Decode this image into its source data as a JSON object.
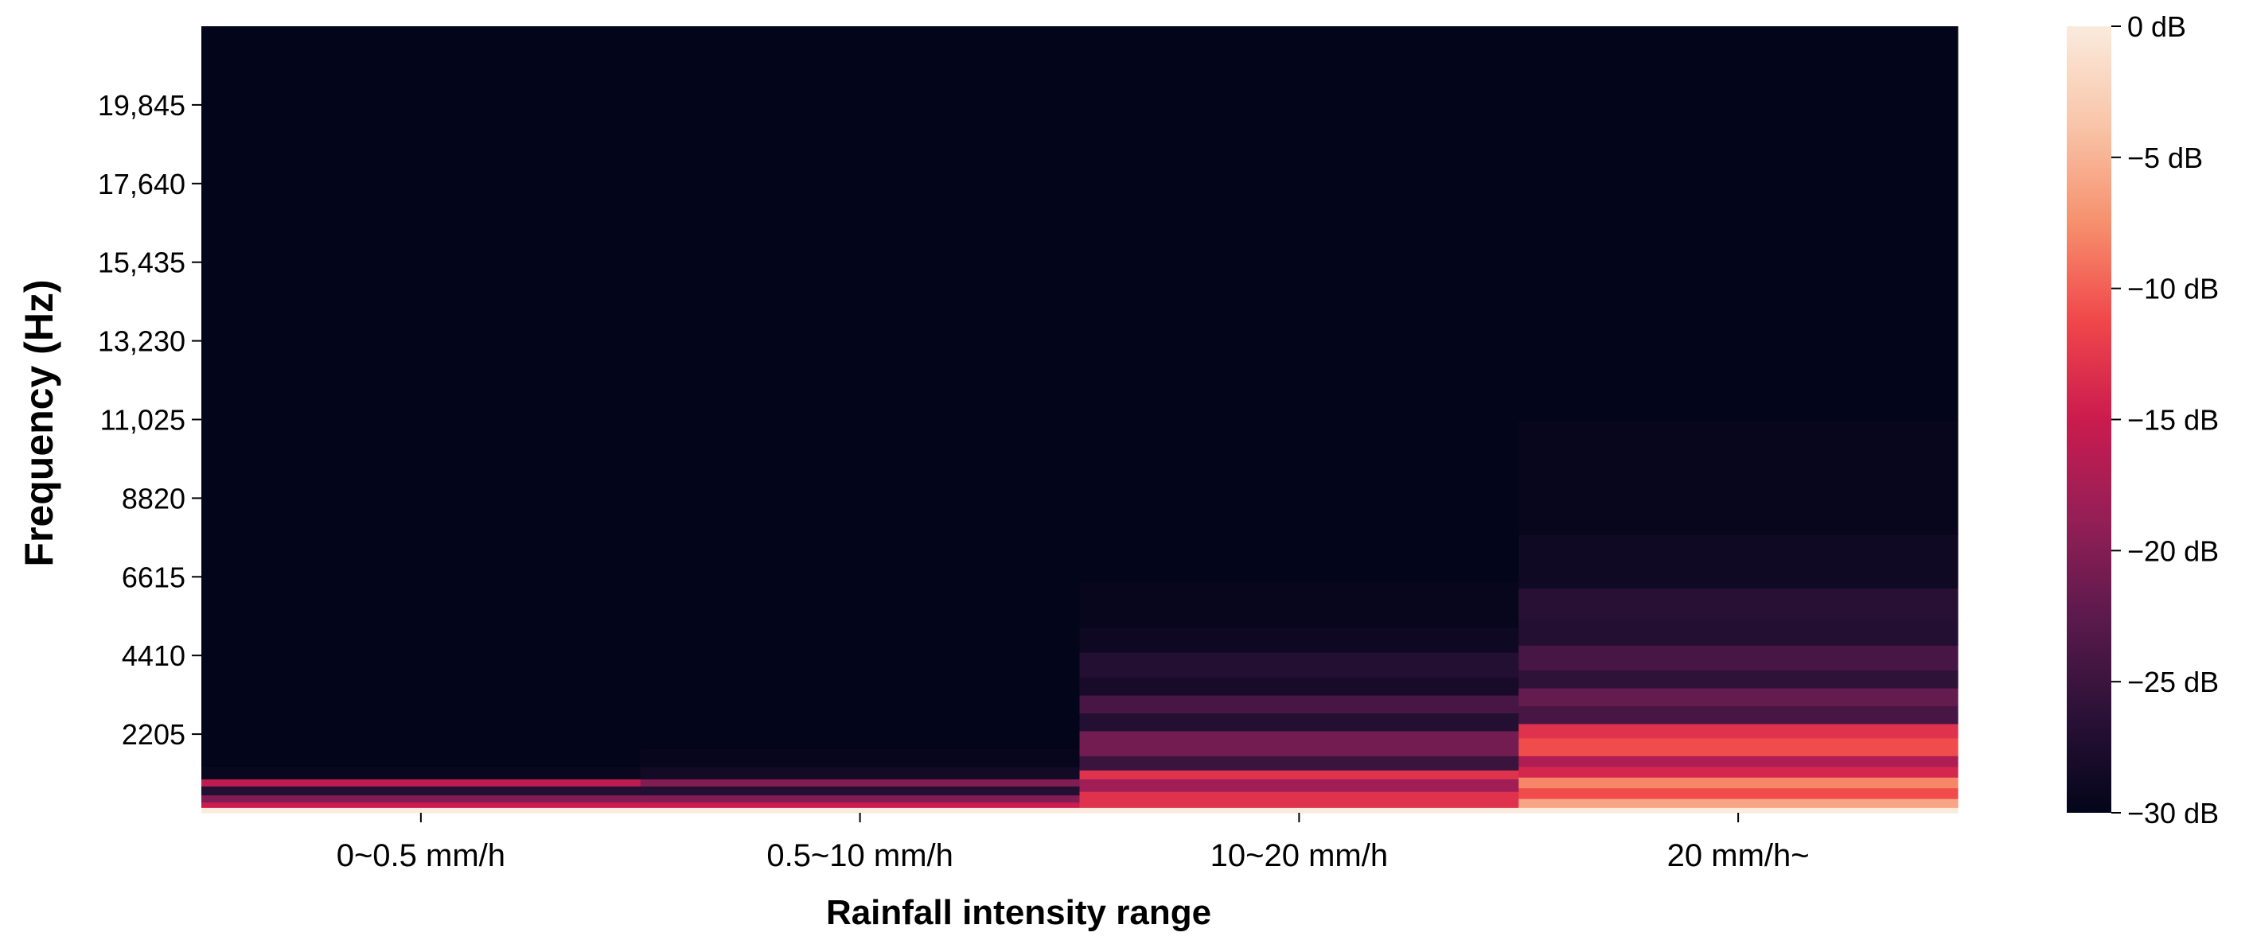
{
  "chart_data": {
    "type": "heatmap",
    "title": "",
    "xlabel": "Rainfall intensity range",
    "ylabel": "Frequency (Hz)",
    "categories": [
      "0~0.5 mm/h",
      "0.5~10 mm/h",
      "10~20 mm/h",
      "20 mm/h~"
    ],
    "y_ticks": [
      {
        "value": 2205,
        "label": "2205"
      },
      {
        "value": 4410,
        "label": "4410"
      },
      {
        "value": 6615,
        "label": "6615"
      },
      {
        "value": 8820,
        "label": "8820"
      },
      {
        "value": 11025,
        "label": "11,025"
      },
      {
        "value": 13230,
        "label": "13,230"
      },
      {
        "value": 15435,
        "label": "15,435"
      },
      {
        "value": 17640,
        "label": "17,640"
      },
      {
        "value": 19845,
        "label": "19,845"
      }
    ],
    "ylim": [
      0,
      22050
    ],
    "colorbar": {
      "label": "",
      "range_db": [
        -30,
        0
      ],
      "ticks": [
        {
          "value": 0,
          "label": "0 dB"
        },
        {
          "value": -5,
          "label": "−5 dB"
        },
        {
          "value": -10,
          "label": "−10 dB"
        },
        {
          "value": -15,
          "label": "−15 dB"
        },
        {
          "value": -20,
          "label": "−20 dB"
        },
        {
          "value": -25,
          "label": "−25 dB"
        },
        {
          "value": -30,
          "label": "−30 dB"
        }
      ],
      "colormap": [
        "#03051a",
        "#2b1137",
        "#5c1a4d",
        "#951f56",
        "#cb1b4f",
        "#f0474a",
        "#f6906d",
        "#f9c5a9",
        "#faebdd"
      ]
    },
    "bands": [
      {
        "category": "0~0.5 mm/h",
        "levels": [
          {
            "f": [
              0,
              150
            ],
            "db": 0
          },
          {
            "f": [
              150,
              300
            ],
            "db": -15
          },
          {
            "f": [
              300,
              500
            ],
            "db": -20
          },
          {
            "f": [
              500,
              750
            ],
            "db": -27
          },
          {
            "f": [
              750,
              950
            ],
            "db": -16
          },
          {
            "f": [
              950,
              1300
            ],
            "db": -29.5
          },
          {
            "f": [
              1300,
              22050
            ],
            "db": -30
          }
        ]
      },
      {
        "category": "0.5~10 mm/h",
        "levels": [
          {
            "f": [
              0,
              150
            ],
            "db": 0
          },
          {
            "f": [
              150,
              300
            ],
            "db": -15
          },
          {
            "f": [
              300,
              500
            ],
            "db": -20
          },
          {
            "f": [
              500,
              750
            ],
            "db": -27
          },
          {
            "f": [
              750,
              950
            ],
            "db": -20
          },
          {
            "f": [
              950,
              1300
            ],
            "db": -28.5
          },
          {
            "f": [
              1300,
              1800
            ],
            "db": -29.6
          },
          {
            "f": [
              1800,
              22050
            ],
            "db": -30
          }
        ]
      },
      {
        "category": "10~20 mm/h",
        "levels": [
          {
            "f": [
              0,
              150
            ],
            "db": 0
          },
          {
            "f": [
              150,
              600
            ],
            "db": -13
          },
          {
            "f": [
              600,
              950
            ],
            "db": -18
          },
          {
            "f": [
              950,
              1200
            ],
            "db": -13
          },
          {
            "f": [
              1200,
              1600
            ],
            "db": -25
          },
          {
            "f": [
              1600,
              2300
            ],
            "db": -21
          },
          {
            "f": [
              2300,
              2800
            ],
            "db": -27
          },
          {
            "f": [
              2800,
              3300
            ],
            "db": -24
          },
          {
            "f": [
              3300,
              3800
            ],
            "db": -28
          },
          {
            "f": [
              3800,
              4500
            ],
            "db": -27
          },
          {
            "f": [
              4500,
              5200
            ],
            "db": -29
          },
          {
            "f": [
              5200,
              6500
            ],
            "db": -29.6
          },
          {
            "f": [
              6500,
              22050
            ],
            "db": -30
          }
        ]
      },
      {
        "category": "20 mm/h~",
        "levels": [
          {
            "f": [
              0,
              150
            ],
            "db": 0
          },
          {
            "f": [
              150,
              400
            ],
            "db": -6
          },
          {
            "f": [
              400,
              700
            ],
            "db": -11
          },
          {
            "f": [
              700,
              1000
            ],
            "db": -8
          },
          {
            "f": [
              1000,
              1300
            ],
            "db": -14
          },
          {
            "f": [
              1300,
              1600
            ],
            "db": -17
          },
          {
            "f": [
              1600,
              2100
            ],
            "db": -11
          },
          {
            "f": [
              2100,
              2500
            ],
            "db": -13
          },
          {
            "f": [
              2500,
              3000
            ],
            "db": -24
          },
          {
            "f": [
              3000,
              3500
            ],
            "db": -22
          },
          {
            "f": [
              3500,
              4000
            ],
            "db": -26
          },
          {
            "f": [
              4000,
              4700
            ],
            "db": -24
          },
          {
            "f": [
              4700,
              5400
            ],
            "db": -27
          },
          {
            "f": [
              5400,
              6300
            ],
            "db": -26.5
          },
          {
            "f": [
              6300,
              7800
            ],
            "db": -28.8
          },
          {
            "f": [
              7800,
              11000
            ],
            "db": -29.6
          },
          {
            "f": [
              11000,
              22050
            ],
            "db": -30
          }
        ]
      }
    ]
  }
}
